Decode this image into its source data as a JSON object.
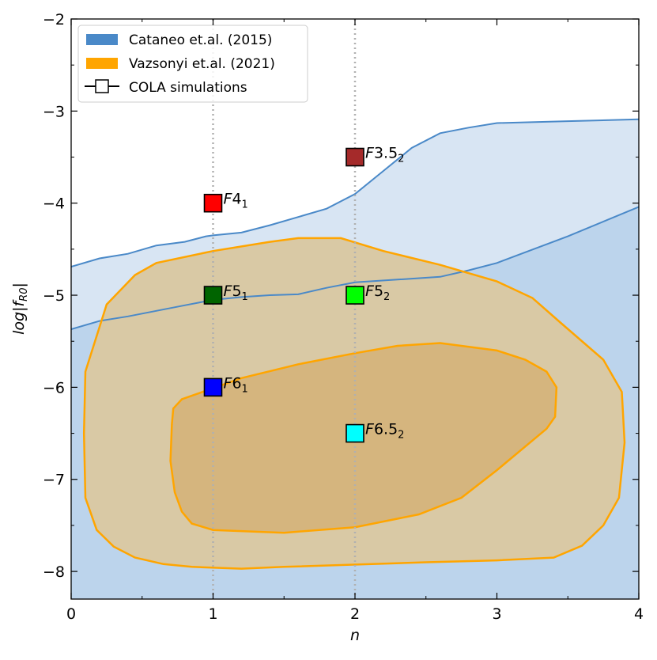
{
  "chart_data": {
    "type": "scatter",
    "xlabel": "n",
    "ylabel": "log|f",
    "ylabel_sub": "R0",
    "ylabel_end": "|",
    "xlim": [
      0,
      4
    ],
    "ylim": [
      -8.3,
      -2
    ],
    "xticks": [
      0,
      1,
      2,
      3,
      4
    ],
    "xtick_labels": [
      "0",
      "1",
      "2",
      "3",
      "4"
    ],
    "yticks": [
      -8,
      -7,
      -6,
      -5,
      -4,
      -3,
      -2
    ],
    "ytick_labels": [
      "−8",
      "−7",
      "−6",
      "−5",
      "−4",
      "−3",
      "−2"
    ],
    "vlines": [
      1,
      2
    ],
    "colors": {
      "cataneo_light": "#d8e5f3",
      "cataneo_dark": "#bcd4ec",
      "cataneo_line": "#4a89c8",
      "vaz_outer_fill": "#d9c9a5",
      "vaz_inner_fill": "#d5b57e",
      "vaz_line": "#ffa500",
      "vline": "#b0b0b0"
    },
    "legend": [
      {
        "label": "Cataneo et.al. (2015)",
        "kind": "patch",
        "color": "#4a89c8"
      },
      {
        "label": "Vazsonyi et.al. (2021)",
        "kind": "patch",
        "color": "#ffa500"
      },
      {
        "label": "COLA simulations",
        "kind": "marker",
        "color": "#ffffff"
      }
    ],
    "cataneo_upper": [
      [
        0,
        -4.69
      ],
      [
        0.2,
        -4.6
      ],
      [
        0.4,
        -4.55
      ],
      [
        0.6,
        -4.46
      ],
      [
        0.8,
        -4.42
      ],
      [
        0.95,
        -4.36
      ],
      [
        1.0,
        -4.35
      ],
      [
        1.2,
        -4.32
      ],
      [
        1.4,
        -4.24
      ],
      [
        1.6,
        -4.15
      ],
      [
        1.8,
        -4.06
      ],
      [
        2.0,
        -3.9
      ],
      [
        2.2,
        -3.65
      ],
      [
        2.4,
        -3.4
      ],
      [
        2.6,
        -3.24
      ],
      [
        2.8,
        -3.18
      ],
      [
        3.0,
        -3.13
      ],
      [
        3.5,
        -3.11
      ],
      [
        4.0,
        -3.09
      ]
    ],
    "cataneo_lower": [
      [
        0,
        -5.37
      ],
      [
        0.2,
        -5.28
      ],
      [
        0.4,
        -5.23
      ],
      [
        0.6,
        -5.17
      ],
      [
        0.8,
        -5.11
      ],
      [
        1.0,
        -5.05
      ],
      [
        1.2,
        -5.02
      ],
      [
        1.4,
        -5.0
      ],
      [
        1.6,
        -4.99
      ],
      [
        1.8,
        -4.92
      ],
      [
        2.0,
        -4.86
      ],
      [
        2.3,
        -4.83
      ],
      [
        2.6,
        -4.8
      ],
      [
        2.8,
        -4.73
      ],
      [
        3.0,
        -4.65
      ],
      [
        3.5,
        -4.36
      ],
      [
        4.0,
        -4.04
      ]
    ],
    "vaz_outer": [
      [
        0.1,
        -5.83
      ],
      [
        0.25,
        -5.1
      ],
      [
        0.45,
        -4.78
      ],
      [
        0.6,
        -4.65
      ],
      [
        1.0,
        -4.52
      ],
      [
        1.4,
        -4.42
      ],
      [
        1.6,
        -4.38
      ],
      [
        1.9,
        -4.38
      ],
      [
        2.2,
        -4.52
      ],
      [
        2.6,
        -4.67
      ],
      [
        3.0,
        -4.85
      ],
      [
        3.25,
        -5.03
      ],
      [
        3.45,
        -5.3
      ],
      [
        3.75,
        -5.7
      ],
      [
        3.88,
        -6.05
      ],
      [
        3.9,
        -6.6
      ],
      [
        3.86,
        -7.2
      ],
      [
        3.75,
        -7.5
      ],
      [
        3.6,
        -7.72
      ],
      [
        3.4,
        -7.85
      ],
      [
        3.0,
        -7.88
      ],
      [
        2.5,
        -7.9
      ],
      [
        1.5,
        -7.95
      ],
      [
        1.2,
        -7.97
      ],
      [
        0.85,
        -7.95
      ],
      [
        0.65,
        -7.92
      ],
      [
        0.45,
        -7.85
      ],
      [
        0.3,
        -7.73
      ],
      [
        0.18,
        -7.55
      ],
      [
        0.1,
        -7.2
      ],
      [
        0.09,
        -6.5
      ]
    ],
    "vaz_inner": [
      [
        0.72,
        -6.23
      ],
      [
        0.78,
        -6.13
      ],
      [
        1.2,
        -5.9
      ],
      [
        1.6,
        -5.75
      ],
      [
        2.0,
        -5.63
      ],
      [
        2.3,
        -5.55
      ],
      [
        2.6,
        -5.52
      ],
      [
        3.0,
        -5.6
      ],
      [
        3.2,
        -5.7
      ],
      [
        3.35,
        -5.83
      ],
      [
        3.42,
        -6.0
      ],
      [
        3.41,
        -6.32
      ],
      [
        3.35,
        -6.45
      ],
      [
        3.0,
        -6.9
      ],
      [
        2.75,
        -7.2
      ],
      [
        2.45,
        -7.38
      ],
      [
        2.0,
        -7.52
      ],
      [
        1.5,
        -7.58
      ],
      [
        1.0,
        -7.55
      ],
      [
        0.85,
        -7.48
      ],
      [
        0.78,
        -7.35
      ],
      [
        0.73,
        -7.14
      ],
      [
        0.7,
        -6.8
      ],
      [
        0.71,
        -6.4
      ]
    ],
    "points": [
      {
        "name": "F4",
        "sub": "1",
        "x": 1,
        "y": -4.0,
        "color": "#ff0000"
      },
      {
        "name": "F5",
        "sub": "1",
        "x": 1,
        "y": -5.0,
        "color": "#006400"
      },
      {
        "name": "F6",
        "sub": "1",
        "x": 1,
        "y": -6.0,
        "color": "#0000ff"
      },
      {
        "name": "F3.5",
        "sub": "2",
        "x": 2,
        "y": -3.5,
        "color": "#a52a2a"
      },
      {
        "name": "F5",
        "sub": "2",
        "x": 2,
        "y": -5.0,
        "color": "#00ff00"
      },
      {
        "name": "F6.5",
        "sub": "2",
        "x": 2,
        "y": -6.5,
        "color": "#00ffff"
      }
    ]
  }
}
